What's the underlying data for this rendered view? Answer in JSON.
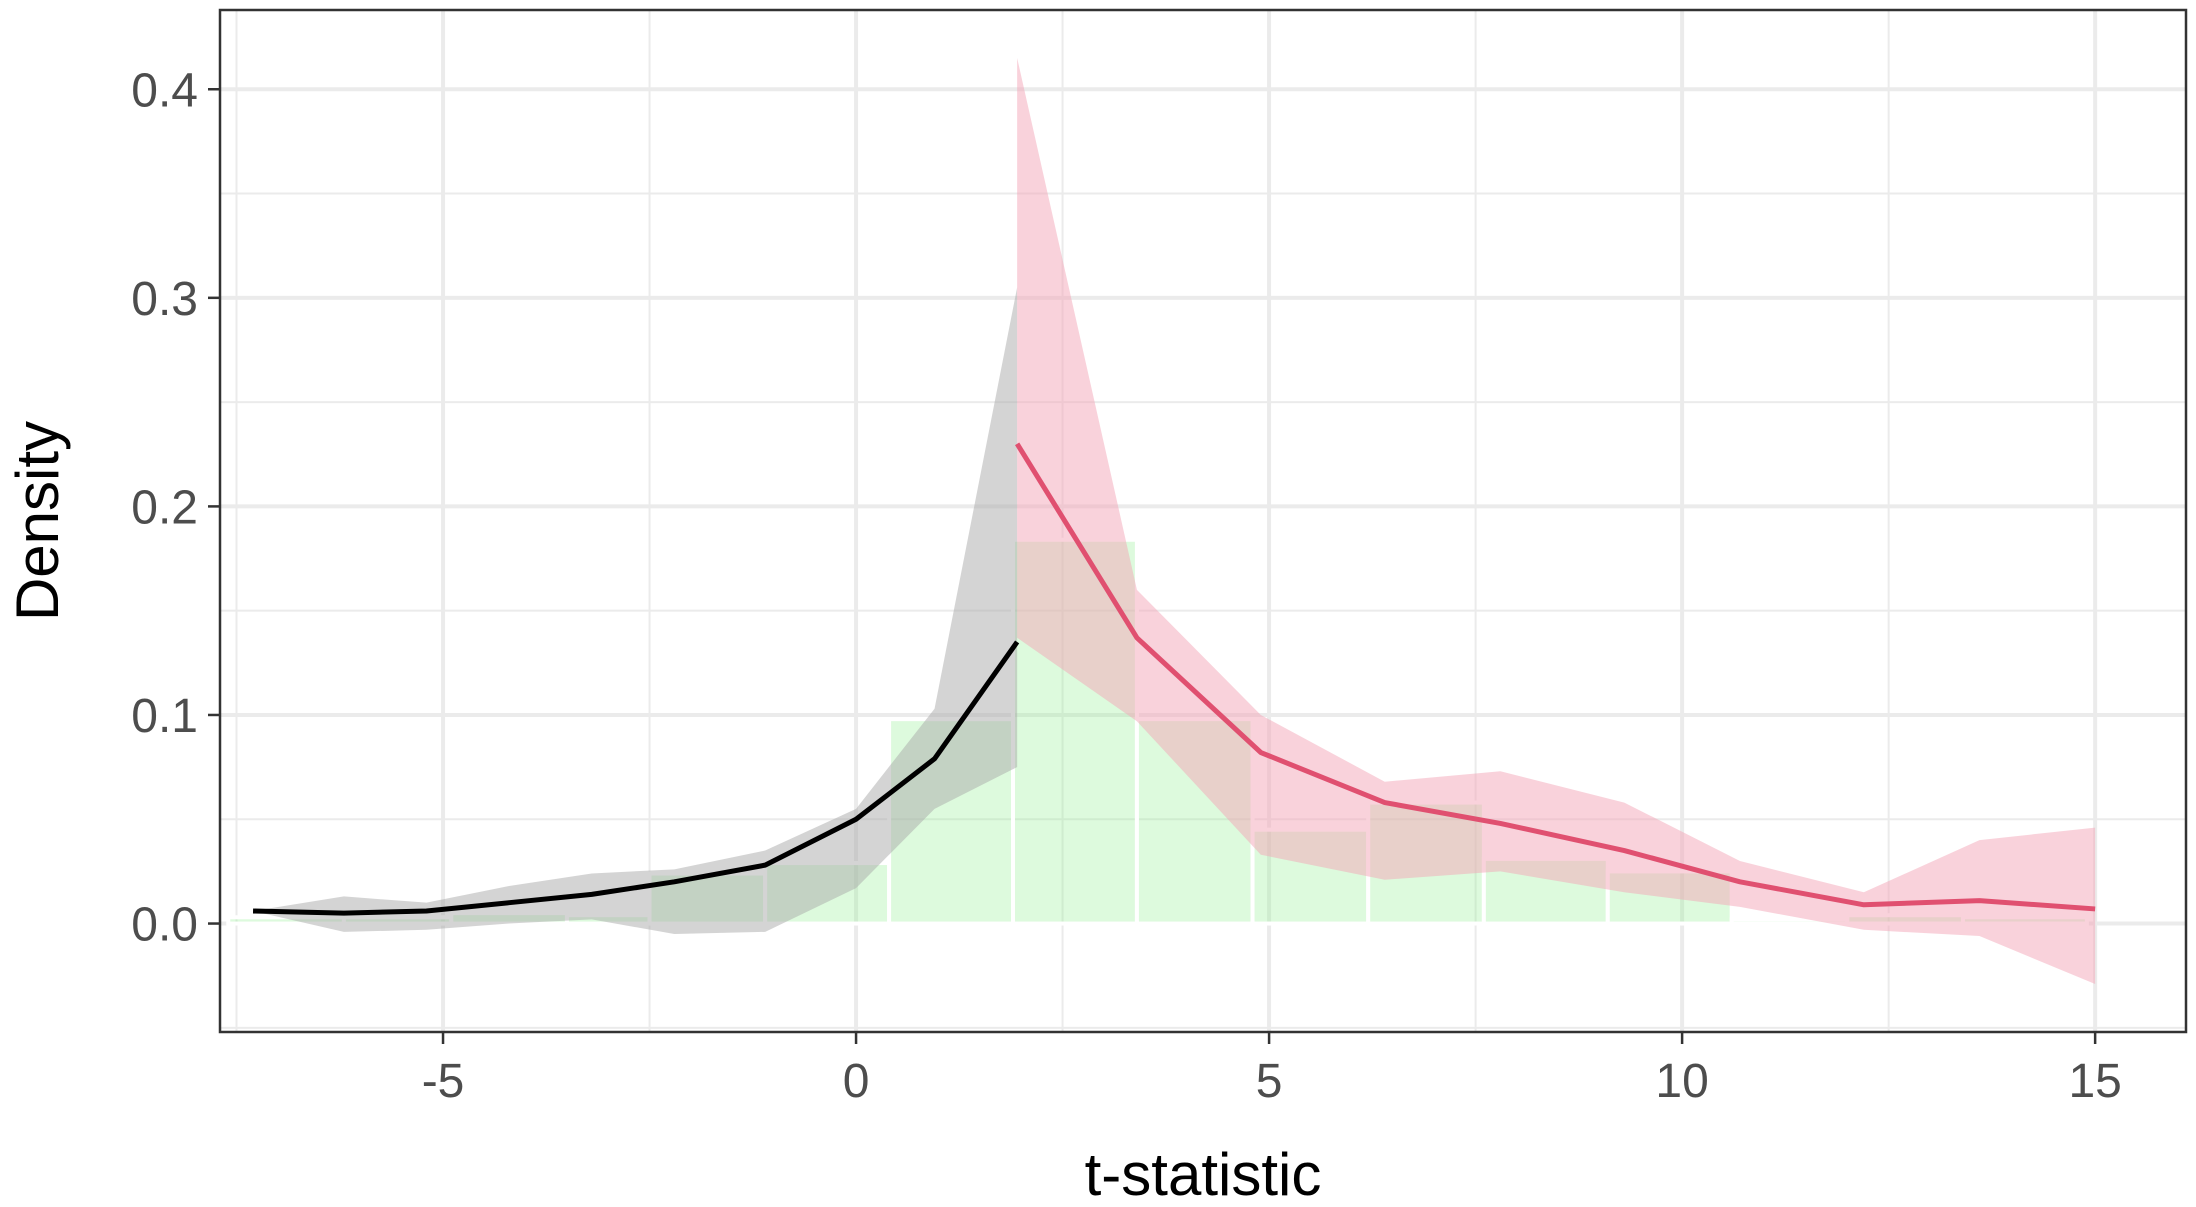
{
  "chart_data": {
    "type": "line",
    "xlabel": "t-statistic",
    "ylabel": "Density",
    "xlim": [
      -7.7,
      16.1
    ],
    "ylim": [
      -0.052,
      0.438
    ],
    "x_ticks": [
      -5,
      0,
      5,
      10,
      15
    ],
    "x_tick_labels": [
      "-5",
      "0",
      "5",
      "10",
      "15"
    ],
    "y_ticks": [
      0,
      0.1,
      0.2,
      0.3,
      0.4
    ],
    "y_tick_labels": [
      "0.0",
      "0.1",
      "0.2",
      "0.3",
      "0.4"
    ],
    "grid": true,
    "legend": "none",
    "histogram": {
      "color": "#90ee90",
      "bins": [
        {
          "x0": -7.6,
          "x1": -6.2,
          "value": 0.003
        },
        {
          "x0": -6.2,
          "x1": -4.9,
          "value": 0.003
        },
        {
          "x0": -4.9,
          "x1": -3.5,
          "value": 0.005
        },
        {
          "x0": -3.5,
          "x1": -2.5,
          "value": 0.004
        },
        {
          "x0": -2.5,
          "x1": -1.1,
          "value": 0.024
        },
        {
          "x0": -1.1,
          "x1": 0.4,
          "value": 0.029
        },
        {
          "x0": 0.4,
          "x1": 1.9,
          "value": 0.098
        },
        {
          "x0": 1.9,
          "x1": 3.4,
          "value": 0.184
        },
        {
          "x0": 3.4,
          "x1": 4.8,
          "value": 0.098
        },
        {
          "x0": 4.8,
          "x1": 6.2,
          "value": 0.045
        },
        {
          "x0": 6.2,
          "x1": 7.6,
          "value": 0.058
        },
        {
          "x0": 7.6,
          "x1": 9.1,
          "value": 0.031
        },
        {
          "x0": 9.1,
          "x1": 10.6,
          "value": 0.025
        },
        {
          "x0": 10.6,
          "x1": 12.0,
          "value": 0.002
        },
        {
          "x0": 12.0,
          "x1": 13.4,
          "value": 0.004
        },
        {
          "x0": 13.4,
          "x1": 14.9,
          "value": 0.003
        }
      ]
    },
    "series": [
      {
        "color": "#000000",
        "band_color": "#a9a9a9",
        "points": [
          {
            "x": -7.3,
            "y": 0.006,
            "lo": 0.006,
            "hi": 0.006
          },
          {
            "x": -6.2,
            "y": 0.005,
            "lo": -0.004,
            "hi": 0.013
          },
          {
            "x": -5.2,
            "y": 0.006,
            "lo": -0.003,
            "hi": 0.01
          },
          {
            "x": -4.2,
            "y": 0.01,
            "lo": 0.0,
            "hi": 0.018
          },
          {
            "x": -3.2,
            "y": 0.014,
            "lo": 0.002,
            "hi": 0.024
          },
          {
            "x": -2.2,
            "y": 0.02,
            "lo": -0.005,
            "hi": 0.026
          },
          {
            "x": -1.1,
            "y": 0.028,
            "lo": -0.004,
            "hi": 0.035
          },
          {
            "x": 0.0,
            "y": 0.05,
            "lo": 0.017,
            "hi": 0.055
          },
          {
            "x": 0.95,
            "y": 0.079,
            "lo": 0.055,
            "hi": 0.103
          },
          {
            "x": 1.95,
            "y": 0.135,
            "lo": 0.075,
            "hi": 0.305
          }
        ]
      },
      {
        "color": "#e05070",
        "band_color": "#f4a6b8",
        "points": [
          {
            "x": 1.95,
            "y": 0.23,
            "lo": 0.137,
            "hi": 0.415
          },
          {
            "x": 3.4,
            "y": 0.137,
            "lo": 0.097,
            "hi": 0.16
          },
          {
            "x": 4.9,
            "y": 0.082,
            "lo": 0.033,
            "hi": 0.1
          },
          {
            "x": 6.4,
            "y": 0.058,
            "lo": 0.021,
            "hi": 0.068
          },
          {
            "x": 7.8,
            "y": 0.048,
            "lo": 0.025,
            "hi": 0.073
          },
          {
            "x": 9.3,
            "y": 0.035,
            "lo": 0.015,
            "hi": 0.058
          },
          {
            "x": 10.7,
            "y": 0.02,
            "lo": 0.008,
            "hi": 0.03
          },
          {
            "x": 12.2,
            "y": 0.009,
            "lo": -0.003,
            "hi": 0.015
          },
          {
            "x": 13.6,
            "y": 0.011,
            "lo": -0.006,
            "hi": 0.04
          },
          {
            "x": 15.0,
            "y": 0.007,
            "lo": -0.029,
            "hi": 0.046
          }
        ]
      }
    ]
  }
}
